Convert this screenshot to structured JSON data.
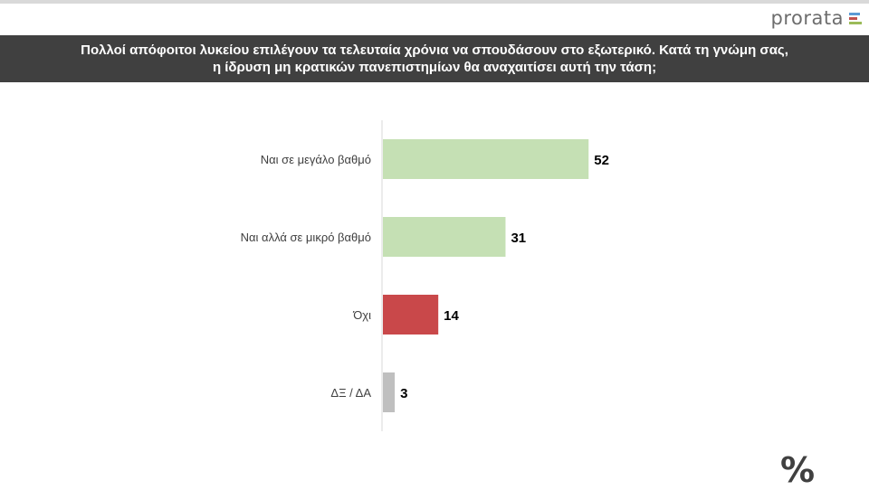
{
  "brand": {
    "name": "prorata",
    "bar_colors": [
      "#5b9bd5",
      "#c0504d",
      "#9bbb59"
    ]
  },
  "question": {
    "line1": "Πολλοί απόφοιτοι λυκείου επιλέγουν τα τελευταία χρόνια να σπουδάσουν στο εξωτερικό. Κατά τη γνώμη σας,",
    "line2": "η ίδρυση μη κρατικών πανεπιστημίων θα αναχαιτίσει αυτή την τάση;"
  },
  "chart_data": {
    "type": "bar",
    "orientation": "horizontal",
    "categories": [
      "Ναι σε μεγάλο βαθμό",
      "Ναι αλλά σε μικρό βαθμό",
      "Όχι",
      "ΔΞ / ΔΑ"
    ],
    "values": [
      52,
      31,
      14,
      3
    ],
    "colors": [
      "#c5e0b4",
      "#c5e0b4",
      "#c9484a",
      "#bfbfbf"
    ],
    "title": "",
    "xlabel": "",
    "ylabel": "",
    "xlim": [
      0,
      100
    ],
    "grid": false,
    "legend": "none",
    "data_labels": true
  },
  "footer_symbol": "%"
}
